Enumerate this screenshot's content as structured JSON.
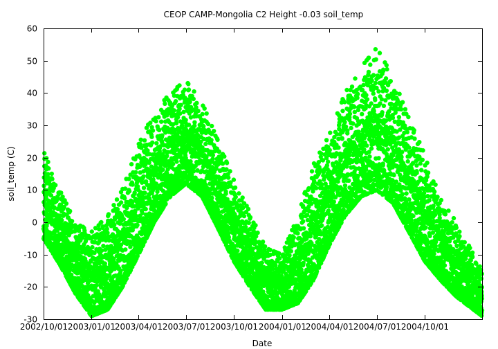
{
  "chart_data": {
    "type": "scatter",
    "title": "CEOP CAMP-Mongolia C2 Height -0.03 soil_temp",
    "xlabel": "Date",
    "ylabel": "soil_temp (C)",
    "ylim": [
      -30,
      60
    ],
    "yticks": [
      -30,
      -20,
      -10,
      0,
      10,
      20,
      30,
      40,
      50,
      60
    ],
    "xlim": [
      "2002-10-01",
      "2005-01-19"
    ],
    "xticks": [
      {
        "date": "2002-10-01",
        "label": "2002/10/01"
      },
      {
        "date": "2003-01-01",
        "label": "2003/01/01"
      },
      {
        "date": "2003-04-01",
        "label": "2003/04/01"
      },
      {
        "date": "2003-07-01",
        "label": "2003/07/01"
      },
      {
        "date": "2003-10-01",
        "label": "2003/10/01"
      },
      {
        "date": "2004-01-01",
        "label": "2004/01/01"
      },
      {
        "date": "2004-04-01",
        "label": "2004/04/01"
      },
      {
        "date": "2004-07-01",
        "label": "2004/07/01"
      },
      {
        "date": "2004-10-01",
        "label": "2004/10/01"
      }
    ],
    "grid": false,
    "legend": "none",
    "series": [
      {
        "name": "soil_temp",
        "color": "#00ff00",
        "trend": [
          {
            "date": "2002-10-01",
            "min": -5,
            "max": 22
          },
          {
            "date": "2002-11-01",
            "min": -13,
            "max": 10
          },
          {
            "date": "2002-12-01",
            "min": -22,
            "max": 0
          },
          {
            "date": "2003-01-01",
            "min": -29,
            "max": -3
          },
          {
            "date": "2003-02-01",
            "min": -27,
            "max": 2
          },
          {
            "date": "2003-03-01",
            "min": -20,
            "max": 10
          },
          {
            "date": "2003-04-01",
            "min": -10,
            "max": 24
          },
          {
            "date": "2003-05-01",
            "min": 0,
            "max": 34
          },
          {
            "date": "2003-06-01",
            "min": 8,
            "max": 40
          },
          {
            "date": "2003-07-01",
            "min": 12,
            "max": 44
          },
          {
            "date": "2003-08-01",
            "min": 8,
            "max": 37
          },
          {
            "date": "2003-09-01",
            "min": -2,
            "max": 25
          },
          {
            "date": "2003-10-01",
            "min": -12,
            "max": 13
          },
          {
            "date": "2003-11-01",
            "min": -20,
            "max": 3
          },
          {
            "date": "2003-12-01",
            "min": -27,
            "max": -8
          },
          {
            "date": "2004-01-01",
            "min": -27,
            "max": -10
          },
          {
            "date": "2004-02-01",
            "min": -25,
            "max": 2
          },
          {
            "date": "2004-03-01",
            "min": -18,
            "max": 18
          },
          {
            "date": "2004-04-01",
            "min": -7,
            "max": 27
          },
          {
            "date": "2004-05-01",
            "min": 2,
            "max": 40
          },
          {
            "date": "2004-06-01",
            "min": 8,
            "max": 48
          },
          {
            "date": "2004-07-01",
            "min": 10,
            "max": 54
          },
          {
            "date": "2004-08-01",
            "min": 6,
            "max": 45
          },
          {
            "date": "2004-09-01",
            "min": -3,
            "max": 32
          },
          {
            "date": "2004-10-01",
            "min": -12,
            "max": 21
          },
          {
            "date": "2004-11-01",
            "min": -18,
            "max": 7
          },
          {
            "date": "2004-12-01",
            "min": -23,
            "max": 0
          },
          {
            "date": "2005-01-19",
            "min": -29,
            "max": -15
          }
        ]
      }
    ]
  }
}
